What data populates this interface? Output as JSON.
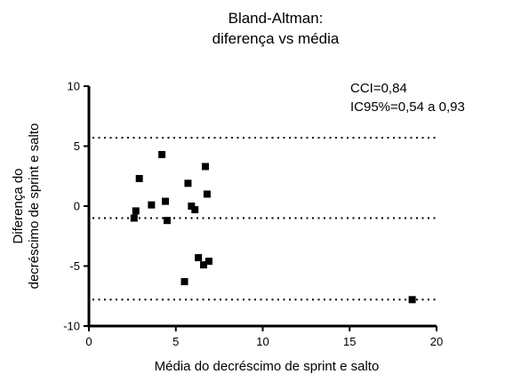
{
  "chart_data": {
    "type": "scatter",
    "title": [
      "Bland-Altman:",
      "diferença vs média"
    ],
    "xlabel": "Média do decréscimo de sprint e salto",
    "ylabel": [
      "Diferença do",
      "decréscimo de sprint e salto"
    ],
    "xlim": [
      0,
      20
    ],
    "ylim": [
      -10,
      10
    ],
    "x_ticks": [
      0,
      5,
      10,
      15,
      20
    ],
    "y_ticks": [
      -10,
      -5,
      0,
      5,
      10
    ],
    "annotations": [
      "CCI=0,84",
      "IC95%=0,54 a 0,93"
    ],
    "reference_lines": [
      5.7,
      -1.0,
      -7.8
    ],
    "points": [
      {
        "x": 2.6,
        "y": -1.0
      },
      {
        "x": 2.7,
        "y": -0.4
      },
      {
        "x": 2.9,
        "y": 2.3
      },
      {
        "x": 3.6,
        "y": 0.1
      },
      {
        "x": 4.2,
        "y": 4.3
      },
      {
        "x": 4.4,
        "y": 0.4
      },
      {
        "x": 4.5,
        "y": -1.2
      },
      {
        "x": 5.5,
        "y": -6.3
      },
      {
        "x": 5.7,
        "y": 1.9
      },
      {
        "x": 5.9,
        "y": 0.0
      },
      {
        "x": 6.1,
        "y": -0.3
      },
      {
        "x": 6.3,
        "y": -4.3
      },
      {
        "x": 6.6,
        "y": -4.9
      },
      {
        "x": 6.7,
        "y": 3.3
      },
      {
        "x": 6.8,
        "y": 1.0
      },
      {
        "x": 6.9,
        "y": -4.6
      },
      {
        "x": 18.6,
        "y": -7.8
      }
    ],
    "grid": false,
    "legend": "none"
  }
}
